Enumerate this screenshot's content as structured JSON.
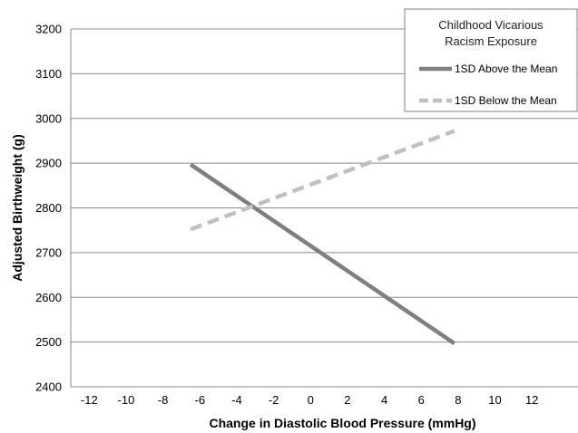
{
  "chart_data": {
    "type": "line",
    "title": "",
    "xlabel": "Change in Diastolic Blood Pressure (mmHg)",
    "ylabel": "Adjusted Birthweight (g)",
    "xlim": [
      -13,
      14.5
    ],
    "ylim": [
      2400,
      3200
    ],
    "x_ticks": [
      -12,
      -10,
      -8,
      -6,
      -4,
      -2,
      0,
      2,
      4,
      6,
      8,
      10,
      12
    ],
    "y_ticks": [
      2400,
      2500,
      2600,
      2700,
      2800,
      2900,
      3000,
      3100,
      3200
    ],
    "grid": "horizontal",
    "legend": {
      "title_lines": [
        "Childhood Vicarious",
        "Racism Exposure"
      ],
      "placement": "top-right"
    },
    "series": [
      {
        "name": "1SD Above the Mean",
        "style": "solid",
        "color": "#7f7f7f",
        "x": [
          -6.5,
          7.8
        ],
        "y": [
          2897,
          2497
        ]
      },
      {
        "name": "1SD Below the Mean",
        "style": "dashed",
        "color": "#c0c0c0",
        "x": [
          -6.5,
          7.8
        ],
        "y": [
          2752,
          2972
        ]
      }
    ]
  }
}
